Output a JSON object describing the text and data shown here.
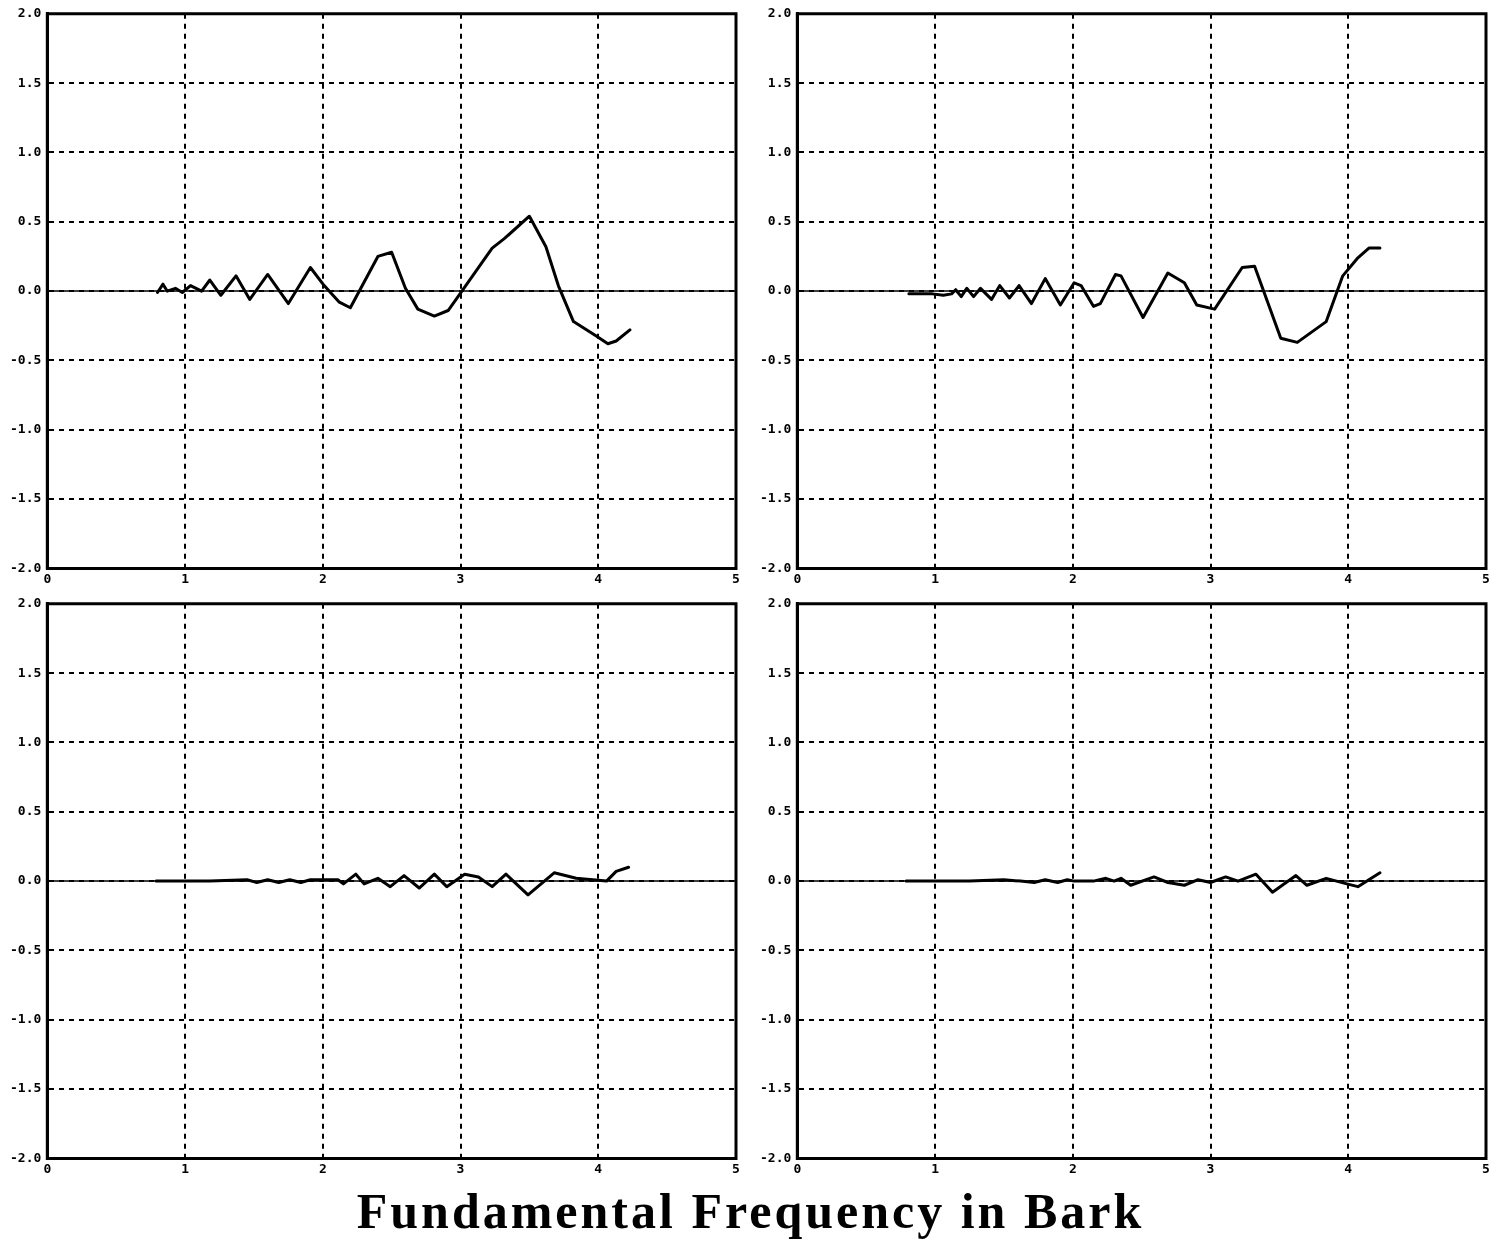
{
  "chart_data": [
    {
      "type": "line",
      "color": "#000000",
      "marker": "none",
      "line_style": "solid",
      "grid": true,
      "xlim": [
        0,
        5
      ],
      "xticks": [
        0,
        1,
        2,
        3,
        4,
        5
      ],
      "ylim": [
        -2,
        2
      ],
      "yticks": [
        {
          "value": -2,
          "label": "-2.0"
        },
        {
          "value": -1.5,
          "label": "-1.5"
        },
        {
          "value": -1,
          "label": "-1.0"
        },
        {
          "value": -0.5,
          "label": "-0.5"
        },
        {
          "value": 0,
          "label": "0.0"
        },
        {
          "value": 0.5,
          "label": "0.5"
        },
        {
          "value": 1,
          "label": "1.0"
        },
        {
          "value": 1.5,
          "label": "1.5"
        },
        {
          "value": 2,
          "label": "2.0"
        }
      ],
      "ref_lines": [
        {
          "axis": "y",
          "value": 0
        }
      ],
      "x": [
        0.8,
        0.84,
        0.87,
        0.93,
        0.98,
        1.04,
        1.12,
        1.18,
        1.26,
        1.37,
        1.47,
        1.6,
        1.75,
        1.91,
        2.01,
        2.12,
        2.2,
        2.4,
        2.5,
        2.6,
        2.69,
        2.81,
        2.91,
        3.01,
        3.13,
        3.23,
        3.32,
        3.5,
        3.62,
        3.71,
        3.82,
        3.98,
        4.07,
        4.13,
        4.23
      ],
      "values": [
        -0.01,
        0.05,
        0,
        0.02,
        -0.01,
        0.04,
        0,
        0.08,
        -0.03,
        0.11,
        -0.06,
        0.12,
        -0.09,
        0.17,
        0.04,
        -0.08,
        -0.12,
        0.25,
        0.28,
        0.02,
        -0.13,
        -0.18,
        -0.14,
        0,
        0.17,
        0.31,
        0.38,
        0.54,
        0.32,
        0.04,
        -0.22,
        -0.32,
        -0.38,
        -0.36,
        -0.28
      ]
    },
    {
      "type": "line",
      "color": "#000000",
      "marker": "none",
      "line_style": "solid",
      "grid": true,
      "xlim": [
        0,
        5
      ],
      "xticks": [
        0,
        1,
        2,
        3,
        4,
        5
      ],
      "ylim": [
        -2,
        2
      ],
      "yticks": [
        {
          "value": -2,
          "label": "-2.0"
        },
        {
          "value": -1.5,
          "label": "-1.5"
        },
        {
          "value": -1,
          "label": "-1.0"
        },
        {
          "value": -0.5,
          "label": "-0.5"
        },
        {
          "value": 0,
          "label": "0.0"
        },
        {
          "value": 0.5,
          "label": "0.5"
        },
        {
          "value": 1,
          "label": "1.0"
        },
        {
          "value": 1.5,
          "label": "1.5"
        },
        {
          "value": 2,
          "label": "2.0"
        }
      ],
      "ref_lines": [
        {
          "axis": "y",
          "value": 0
        }
      ],
      "x": [
        0.81,
        0.98,
        1.06,
        1.12,
        1.15,
        1.19,
        1.23,
        1.28,
        1.33,
        1.41,
        1.47,
        1.54,
        1.61,
        1.7,
        1.8,
        1.91,
        2.01,
        2.06,
        2.15,
        2.2,
        2.31,
        2.35,
        2.51,
        2.69,
        2.81,
        2.9,
        3.03,
        3.23,
        3.32,
        3.51,
        3.63,
        3.84,
        3.96,
        4.07,
        4.15,
        4.23
      ],
      "values": [
        -0.02,
        -0.02,
        -0.03,
        -0.02,
        0.01,
        -0.04,
        0.02,
        -0.04,
        0.02,
        -0.06,
        0.04,
        -0.05,
        0.04,
        -0.09,
        0.09,
        -0.1,
        0.06,
        0.04,
        -0.11,
        -0.09,
        0.12,
        0.11,
        -0.19,
        0.13,
        0.06,
        -0.1,
        -0.13,
        0.17,
        0.18,
        -0.34,
        -0.37,
        -0.22,
        0.11,
        0.24,
        0.31,
        0.31
      ]
    },
    {
      "type": "line",
      "color": "#000000",
      "marker": "none",
      "line_style": "solid",
      "grid": true,
      "xlabel": "Fundamental Frequency in Bark",
      "xlim": [
        0,
        5
      ],
      "xticks": [
        0,
        1,
        2,
        3,
        4,
        5
      ],
      "ylim": [
        -2,
        2
      ],
      "yticks": [
        {
          "value": -2,
          "label": "-2.0"
        },
        {
          "value": -1.5,
          "label": "-1.5"
        },
        {
          "value": -1,
          "label": "-1.0"
        },
        {
          "value": -0.5,
          "label": "-0.5"
        },
        {
          "value": 0,
          "label": "0.0"
        },
        {
          "value": 0.5,
          "label": "0.5"
        },
        {
          "value": 1,
          "label": "1.0"
        },
        {
          "value": 1.5,
          "label": "1.5"
        },
        {
          "value": 2,
          "label": "2.0"
        }
      ],
      "ref_lines": [
        {
          "axis": "y",
          "value": 0
        }
      ],
      "x": [
        0.79,
        0.93,
        1.18,
        1.45,
        1.52,
        1.6,
        1.68,
        1.76,
        1.84,
        1.91,
        2.01,
        2.11,
        2.15,
        2.24,
        2.3,
        2.4,
        2.49,
        2.59,
        2.7,
        2.81,
        2.9,
        3.03,
        3.13,
        3.23,
        3.33,
        3.49,
        3.68,
        3.84,
        4.06,
        4.13,
        4.22
      ],
      "values": [
        0,
        0,
        0,
        0.01,
        -0.01,
        0.01,
        -0.01,
        0.01,
        -0.01,
        0.01,
        0.01,
        0.01,
        -0.02,
        0.05,
        -0.02,
        0.02,
        -0.04,
        0.04,
        -0.05,
        0.05,
        -0.04,
        0.05,
        0.03,
        -0.04,
        0.05,
        -0.1,
        0.06,
        0.02,
        0,
        0.07,
        0.1
      ]
    },
    {
      "type": "line",
      "color": "#000000",
      "marker": "none",
      "line_style": "solid",
      "grid": true,
      "xlim": [
        0,
        5
      ],
      "xticks": [
        0,
        1,
        2,
        3,
        4,
        5
      ],
      "ylim": [
        -2,
        2
      ],
      "yticks": [
        {
          "value": -2,
          "label": "-2.0"
        },
        {
          "value": -1.5,
          "label": "-1.5"
        },
        {
          "value": -1,
          "label": "-1.0"
        },
        {
          "value": -0.5,
          "label": "-0.5"
        },
        {
          "value": 0,
          "label": "0.0"
        },
        {
          "value": 0.5,
          "label": "0.5"
        },
        {
          "value": 1,
          "label": "1.0"
        },
        {
          "value": 1.5,
          "label": "1.5"
        },
        {
          "value": 2,
          "label": "2.0"
        }
      ],
      "ref_lines": [
        {
          "axis": "y",
          "value": 0
        }
      ],
      "x": [
        0.79,
        1.25,
        1.5,
        1.62,
        1.72,
        1.8,
        1.89,
        1.96,
        2.01,
        2.15,
        2.24,
        2.3,
        2.35,
        2.42,
        2.59,
        2.69,
        2.81,
        2.91,
        3.0,
        3.11,
        3.2,
        3.33,
        3.45,
        3.62,
        3.7,
        3.84,
        3.99,
        4.07,
        4.23
      ],
      "values": [
        0,
        0,
        0.01,
        0,
        -0.01,
        0.01,
        -0.01,
        0.01,
        0,
        0,
        0.02,
        0,
        0.02,
        -0.03,
        0.03,
        -0.01,
        -0.03,
        0.01,
        -0.01,
        0.03,
        0,
        0.05,
        -0.08,
        0.04,
        -0.03,
        0.02,
        -0.02,
        -0.04,
        0.06
      ]
    }
  ]
}
